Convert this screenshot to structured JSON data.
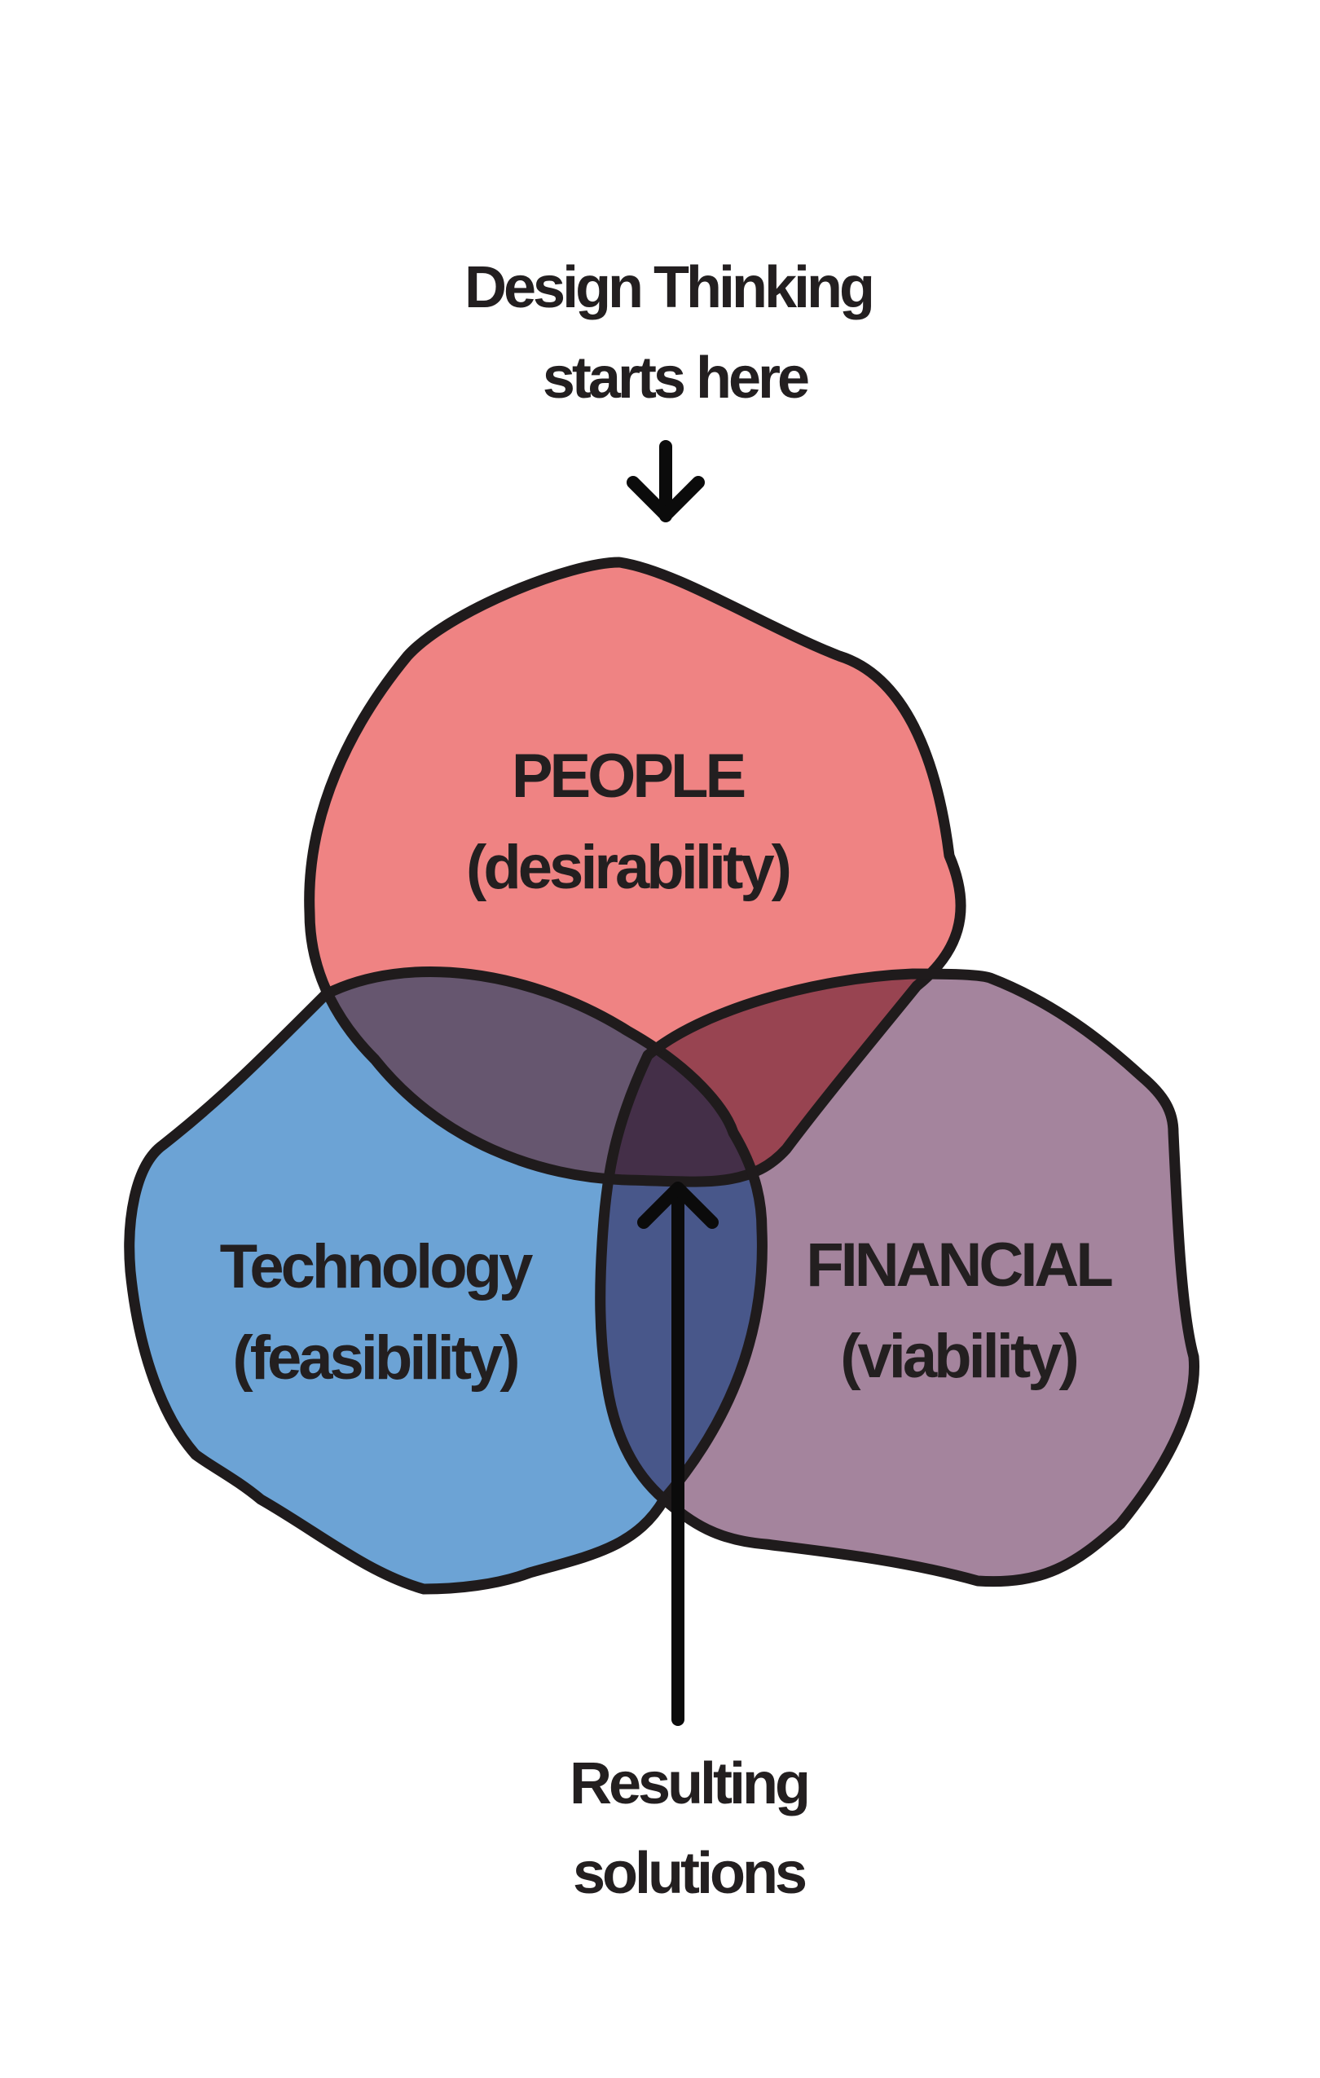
{
  "header": {
    "line1": "Design Thinking",
    "line2": "starts here"
  },
  "circles": {
    "people": {
      "title": "PEOPLE",
      "subtitle": "(desirability)",
      "color": "#ef8383"
    },
    "technology": {
      "title": "Technology",
      "subtitle": "(feasibility)",
      "color": "#6ca3d5"
    },
    "financial": {
      "title": "FINANCIAL",
      "subtitle": "(viability)",
      "color": "#a4849d"
    }
  },
  "footer": {
    "line1": "Resulting",
    "line2": "solutions"
  },
  "colors": {
    "outline": "#1f1b1c",
    "text": "#231f20",
    "background": "#ffffff"
  }
}
